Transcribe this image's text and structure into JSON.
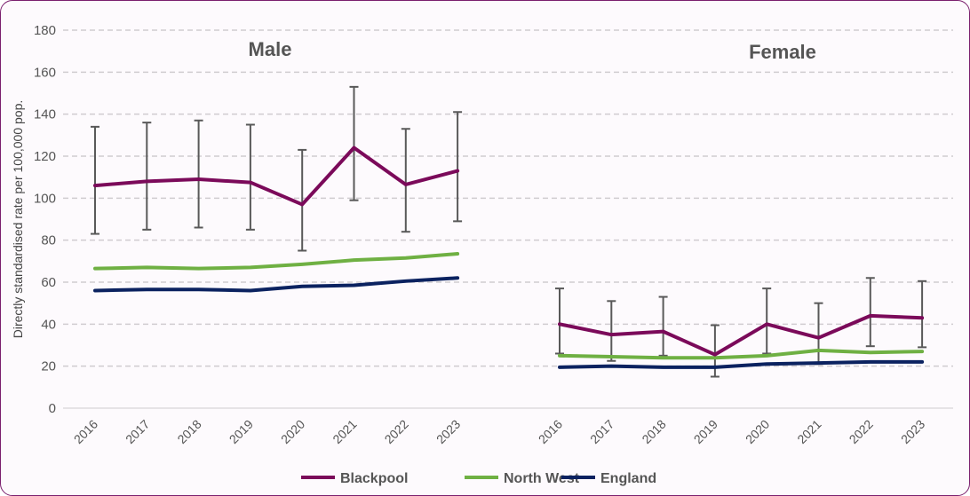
{
  "chart_data": {
    "type": "line",
    "ylabel": "Directly standardised rate per 100,000 pop.",
    "ylim": [
      0,
      180
    ],
    "yticks": [
      0,
      20,
      40,
      60,
      80,
      100,
      120,
      140,
      160,
      180
    ],
    "grid": true,
    "legend_position": "bottom",
    "panels": [
      {
        "title": "Male",
        "categories": [
          "2016",
          "2017",
          "2018",
          "2019",
          "2020",
          "2021",
          "2022",
          "2023"
        ],
        "series": [
          {
            "name": "Blackpool",
            "color": "#7b0a5a",
            "values": [
              106,
              108,
              109,
              107.5,
              97,
              124,
              106.5,
              113
            ],
            "ci_upper": [
              134,
              136,
              137,
              135,
              123,
              153,
              133,
              141
            ],
            "ci_lower": [
              83,
              85,
              86,
              85,
              75,
              99,
              84,
              89
            ]
          },
          {
            "name": "North West",
            "color": "#6fb043",
            "values": [
              66.5,
              67,
              66.5,
              67,
              68.5,
              70.5,
              71.5,
              73.5
            ]
          },
          {
            "name": "England",
            "color": "#0b2260",
            "values": [
              56,
              56.5,
              56.5,
              56,
              58,
              58.5,
              60.5,
              62
            ]
          }
        ]
      },
      {
        "title": "Female",
        "categories": [
          "2016",
          "2017",
          "2018",
          "2019",
          "2020",
          "2021",
          "2022",
          "2023"
        ],
        "series": [
          {
            "name": "Blackpool",
            "color": "#7b0a5a",
            "values": [
              40,
              35,
              36.5,
              25.5,
              40,
              33.5,
              44,
              43
            ],
            "ci_upper": [
              57,
              51,
              53,
              39.5,
              57,
              50,
              62,
              60.5
            ],
            "ci_lower": [
              26,
              22.5,
              25,
              15,
              26,
              21,
              29.5,
              29
            ]
          },
          {
            "name": "North West",
            "color": "#6fb043",
            "values": [
              25,
              24.5,
              24,
              24,
              25,
              27.5,
              26.5,
              27
            ]
          },
          {
            "name": "England",
            "color": "#0b2260",
            "values": [
              19.5,
              20,
              19.5,
              19.5,
              21,
              21.5,
              22,
              22
            ]
          }
        ]
      }
    ],
    "legend": [
      "Blackpool",
      "North West",
      "England"
    ]
  }
}
